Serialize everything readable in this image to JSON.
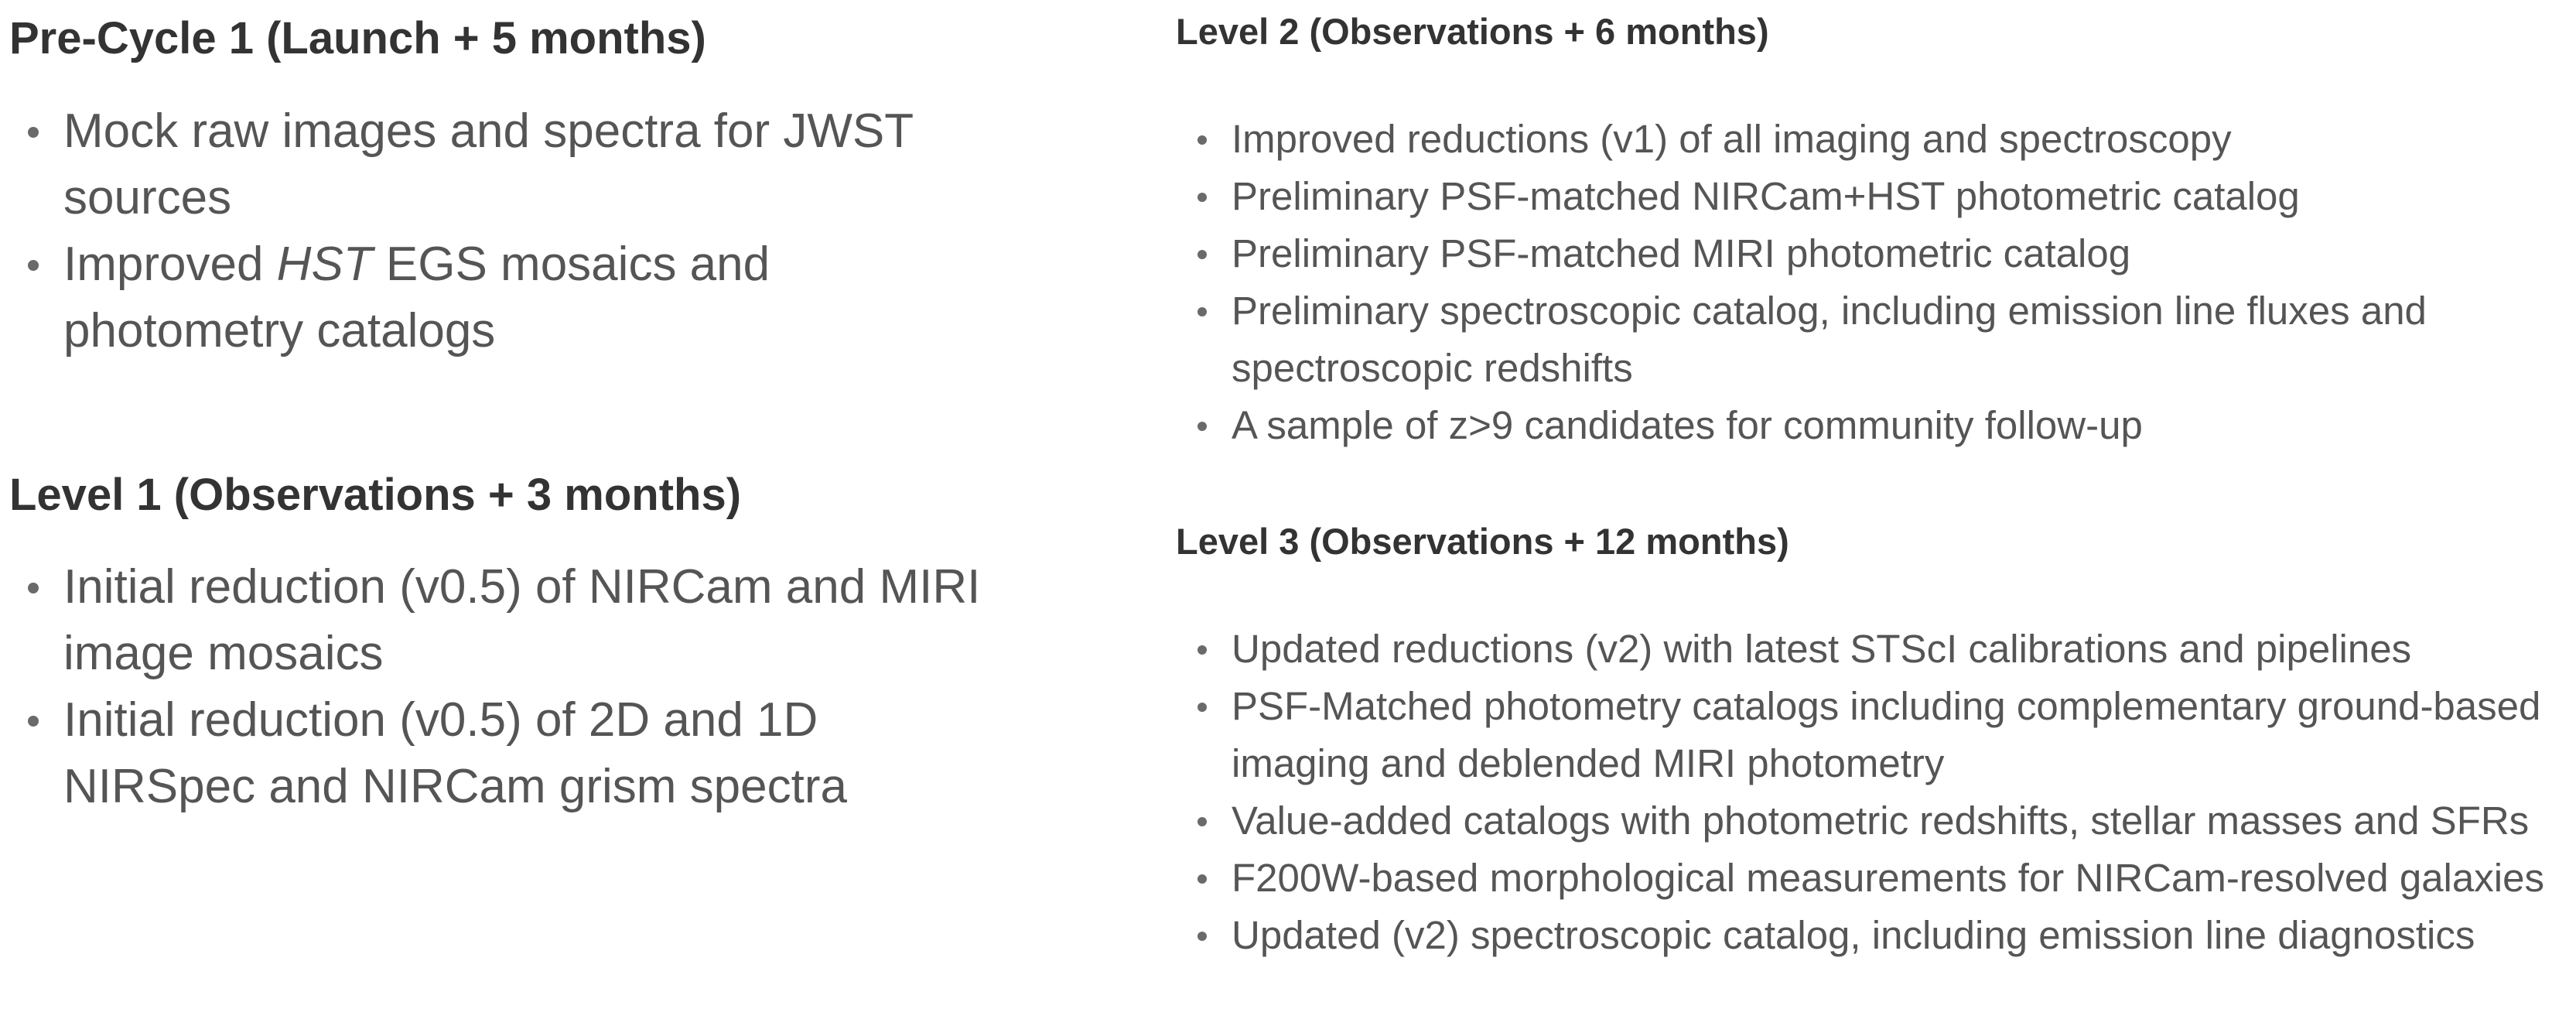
{
  "left": {
    "sections": [
      {
        "heading": "Pre-Cycle 1 (Launch + 5 months)",
        "items": [
          {
            "text": "Mock raw images and spectra for JWST sources"
          },
          {
            "pre": "Improved ",
            "em": "HST",
            "post": " EGS mosaics and photometry catalogs"
          }
        ]
      },
      {
        "heading": "Level 1 (Observations + 3 months)",
        "items": [
          {
            "text": "Initial reduction (v0.5) of NIRCam and MIRI image mosaics"
          },
          {
            "text": "Initial reduction (v0.5) of 2D and 1D NIRSpec and NIRCam grism spectra"
          }
        ]
      }
    ]
  },
  "right": {
    "sections": [
      {
        "heading": "Level 2 (Observations + 6 months)",
        "items": [
          {
            "text": "Improved reductions (v1) of all imaging and spectroscopy"
          },
          {
            "text": "Preliminary PSF-matched NIRCam+HST photometric catalog"
          },
          {
            "text": "Preliminary PSF-matched MIRI photometric catalog"
          },
          {
            "text": "Preliminary spectroscopic catalog, including emission line fluxes and spectroscopic redshifts"
          },
          {
            "text": "A sample of z>9 candidates for community follow-up"
          }
        ]
      },
      {
        "heading": "Level 3 (Observations + 12 months)",
        "items": [
          {
            "text": "Updated reductions (v2) with latest STScI calibrations and pipelines"
          },
          {
            "text": "PSF-Matched photometry catalogs including complementary ground-based imaging and deblended MIRI photometry"
          },
          {
            "text": "Value-added catalogs with photometric redshifts, stellar masses and SFRs"
          },
          {
            "text": "F200W-based morphological measurements for NIRCam-resolved galaxies"
          },
          {
            "text": "Updated (v2) spectroscopic catalog, including emission line diagnostics"
          }
        ]
      }
    ]
  }
}
